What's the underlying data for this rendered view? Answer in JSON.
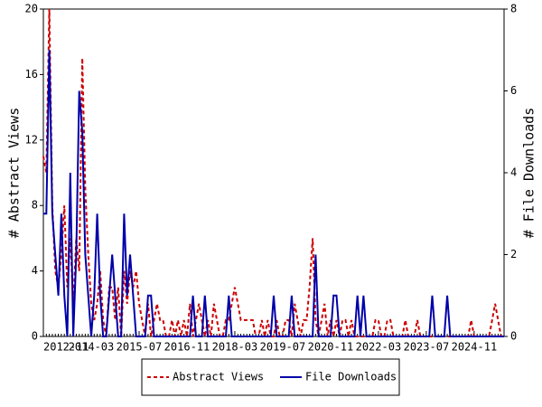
{
  "chart_data": {
    "type": "line",
    "categories": [
      "2012-11",
      null,
      null,
      null,
      null,
      null,
      null,
      null,
      null,
      null,
      null,
      null,
      null,
      null,
      null,
      null,
      "2014-03",
      null,
      null,
      null,
      null,
      null,
      null,
      null,
      null,
      null,
      null,
      null,
      null,
      null,
      null,
      null,
      "2015-07",
      null,
      null,
      null,
      null,
      null,
      null,
      null,
      null,
      null,
      null,
      null,
      null,
      null,
      null,
      null,
      "2016-11",
      null,
      null,
      null,
      null,
      null,
      null,
      null,
      null,
      null,
      null,
      null,
      null,
      null,
      null,
      null,
      "2018-03",
      null,
      null,
      null,
      null,
      null,
      null,
      null,
      null,
      null,
      null,
      null,
      null,
      null,
      null,
      null,
      "2019-07",
      null,
      null,
      null,
      null,
      null,
      null,
      null,
      null,
      null,
      null,
      null,
      null,
      null,
      null,
      null,
      "2020-11",
      null,
      null,
      null,
      null,
      null,
      null,
      null,
      null,
      null,
      null,
      null,
      null,
      null,
      null,
      null,
      "2022-03",
      null,
      null,
      null,
      null,
      null,
      null,
      null,
      null,
      null,
      null,
      null,
      null,
      null,
      null,
      null,
      "2023-07",
      null,
      null,
      null,
      null,
      null,
      null,
      null,
      null,
      null,
      null,
      null,
      null,
      null,
      null,
      null,
      "2024-11",
      null,
      null,
      null,
      null,
      null,
      null,
      null,
      null,
      null,
      null
    ],
    "series": [
      {
        "name": "Abstract Views",
        "color": "#cc0000",
        "dash": true,
        "values": [
          11,
          10,
          20,
          8,
          4,
          3,
          5,
          8,
          3,
          6,
          2,
          6,
          4,
          17,
          9,
          5,
          2,
          1,
          2,
          4,
          1,
          0,
          3,
          3,
          1,
          3,
          0,
          4,
          2,
          4,
          3,
          4,
          2,
          1,
          0,
          2,
          0,
          1,
          2,
          1,
          1,
          0,
          0,
          1,
          0,
          1,
          0,
          1,
          0,
          2,
          0,
          1,
          2,
          1,
          0,
          1,
          0,
          2,
          1,
          0,
          0,
          1,
          1,
          2,
          3,
          2,
          1,
          1,
          1,
          1,
          1,
          0,
          0,
          1,
          0,
          1,
          0,
          0,
          1,
          0,
          0,
          1,
          1,
          0,
          2,
          1,
          0,
          1,
          1,
          3,
          6,
          1,
          0,
          1,
          2,
          0,
          1,
          0,
          1,
          0,
          1,
          1,
          0,
          1,
          0,
          0,
          0,
          0,
          0,
          0,
          0,
          1,
          1,
          0,
          0,
          1,
          1,
          0,
          0,
          0,
          0,
          1,
          0,
          0,
          0,
          1,
          0,
          0,
          0,
          0,
          0,
          0,
          0,
          0,
          0,
          0,
          0,
          0,
          0,
          0,
          0,
          0,
          0,
          1,
          0,
          0,
          0,
          0,
          0,
          0,
          1,
          2,
          1,
          0,
          0
        ]
      },
      {
        "name": "File Downloads",
        "color": "#0000aa",
        "axis": "y2",
        "values": [
          3,
          3,
          7,
          3,
          2,
          1,
          3,
          1,
          0,
          4,
          0,
          2,
          6,
          5,
          2,
          1,
          0,
          1,
          3,
          1,
          0,
          0,
          1,
          2,
          1,
          0,
          0,
          3,
          1,
          2,
          1,
          0,
          0,
          0,
          0,
          1,
          1,
          0,
          0,
          0,
          0,
          0,
          0,
          0,
          0,
          0,
          0,
          0,
          0,
          0,
          1,
          0,
          0,
          0,
          1,
          0,
          0,
          0,
          0,
          0,
          0,
          0,
          1,
          0,
          0,
          0,
          0,
          0,
          0,
          0,
          0,
          0,
          0,
          0,
          0,
          0,
          0,
          1,
          0,
          0,
          0,
          0,
          0,
          1,
          0,
          0,
          0,
          0,
          0,
          0,
          0,
          2,
          0,
          0,
          0,
          0,
          0,
          1,
          1,
          0,
          0,
          0,
          0,
          0,
          0,
          1,
          0,
          1,
          0,
          0,
          0,
          0,
          0,
          0,
          0,
          0,
          0,
          0,
          0,
          0,
          0,
          0,
          0,
          0,
          0,
          0,
          0,
          0,
          0,
          0,
          1,
          0,
          0,
          0,
          0,
          1,
          0,
          0,
          0,
          0,
          0,
          0,
          0,
          0,
          0,
          0,
          0,
          0,
          0,
          0,
          0,
          0,
          0,
          0,
          0
        ]
      }
    ],
    "ylabel": "# Abstract Views",
    "y2label": "# File Downloads",
    "ylim": [
      0,
      20
    ],
    "yticks": [
      0,
      4,
      8,
      12,
      16,
      20
    ],
    "y2lim": [
      0,
      8
    ],
    "y2ticks": [
      0,
      2,
      4,
      6,
      8
    ],
    "legend": "bottom"
  }
}
